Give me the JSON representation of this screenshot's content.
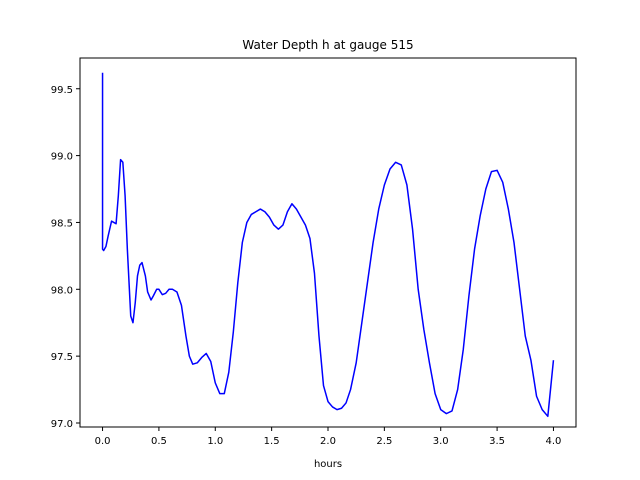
{
  "chart_data": {
    "type": "line",
    "title": "Water Depth h at gauge 515",
    "xlabel": "hours",
    "ylabel": "",
    "xlim": [
      -0.2,
      4.2
    ],
    "ylim": [
      96.97,
      99.73
    ],
    "xticks": [
      0.0,
      0.5,
      1.0,
      1.5,
      2.0,
      2.5,
      3.0,
      3.5,
      4.0
    ],
    "xtick_labels": [
      "0.0",
      "0.5",
      "1.0",
      "1.5",
      "2.0",
      "2.5",
      "3.0",
      "3.5",
      "4.0"
    ],
    "yticks": [
      97.0,
      97.5,
      98.0,
      98.5,
      99.0,
      99.5
    ],
    "ytick_labels": [
      "97.0",
      "97.5",
      "98.0",
      "98.5",
      "99.0",
      "99.5"
    ],
    "grid": false,
    "line_color": "#0000ff",
    "series": [
      {
        "name": "",
        "x": [
          0.0,
          0.0,
          0.01,
          0.03,
          0.05,
          0.08,
          0.1,
          0.12,
          0.14,
          0.16,
          0.18,
          0.2,
          0.22,
          0.25,
          0.27,
          0.29,
          0.31,
          0.33,
          0.35,
          0.38,
          0.4,
          0.43,
          0.45,
          0.48,
          0.5,
          0.53,
          0.56,
          0.59,
          0.62,
          0.66,
          0.7,
          0.74,
          0.77,
          0.8,
          0.84,
          0.88,
          0.92,
          0.96,
          1.0,
          1.04,
          1.08,
          1.12,
          1.16,
          1.2,
          1.24,
          1.28,
          1.32,
          1.36,
          1.4,
          1.44,
          1.48,
          1.52,
          1.56,
          1.6,
          1.64,
          1.68,
          1.72,
          1.76,
          1.8,
          1.84,
          1.88,
          1.92,
          1.96,
          2.0,
          2.04,
          2.08,
          2.12,
          2.16,
          2.2,
          2.25,
          2.3,
          2.35,
          2.4,
          2.45,
          2.5,
          2.55,
          2.6,
          2.65,
          2.7,
          2.75,
          2.8,
          2.85,
          2.9,
          2.95,
          3.0,
          3.05,
          3.1,
          3.15,
          3.2,
          3.25,
          3.3,
          3.35,
          3.4,
          3.45,
          3.5,
          3.55,
          3.6,
          3.65,
          3.7,
          3.75,
          3.8,
          3.85,
          3.9,
          3.95,
          4.0
        ],
        "y": [
          99.62,
          98.3,
          98.29,
          98.32,
          98.4,
          98.51,
          98.5,
          98.49,
          98.7,
          98.97,
          98.95,
          98.7,
          98.3,
          97.8,
          97.75,
          97.9,
          98.1,
          98.18,
          98.2,
          98.1,
          97.98,
          97.92,
          97.95,
          98.0,
          98.0,
          97.96,
          97.97,
          98.0,
          98.0,
          97.98,
          97.88,
          97.65,
          97.5,
          97.44,
          97.45,
          97.49,
          97.52,
          97.46,
          97.3,
          97.22,
          97.22,
          97.38,
          97.68,
          98.05,
          98.35,
          98.5,
          98.56,
          98.58,
          98.6,
          98.58,
          98.54,
          98.48,
          98.45,
          98.48,
          98.58,
          98.64,
          98.6,
          98.54,
          98.48,
          98.38,
          98.12,
          97.65,
          97.28,
          97.16,
          97.12,
          97.1,
          97.11,
          97.15,
          97.25,
          97.45,
          97.75,
          98.05,
          98.35,
          98.6,
          98.78,
          98.9,
          98.95,
          98.93,
          98.78,
          98.45,
          98.0,
          97.7,
          97.45,
          97.22,
          97.1,
          97.07,
          97.09,
          97.25,
          97.55,
          97.95,
          98.3,
          98.55,
          98.75,
          98.88,
          98.89,
          98.8,
          98.6,
          98.35,
          98.0,
          97.65,
          97.47,
          97.2,
          97.1,
          97.05,
          97.47
        ]
      }
    ]
  }
}
